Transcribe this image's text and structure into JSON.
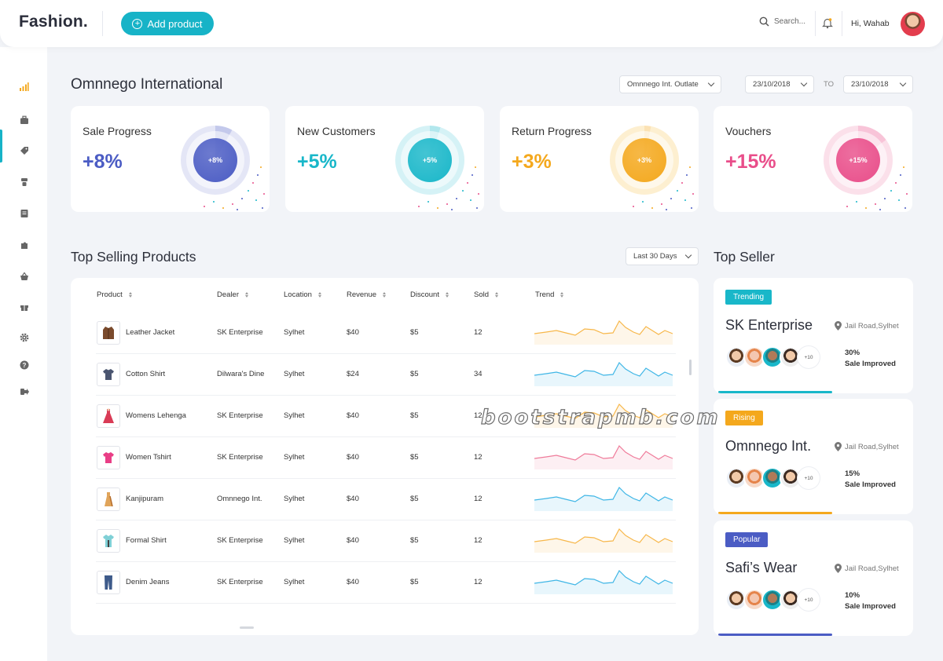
{
  "app": {
    "logo": "Fashion.",
    "add_product_label": "Add product"
  },
  "header": {
    "search_placeholder": "Search...",
    "greeting": "Hi, Wahab"
  },
  "sidebar": {
    "items": [
      {
        "icon": "bar-chart-icon"
      },
      {
        "icon": "briefcase-icon"
      },
      {
        "icon": "tag-icon"
      },
      {
        "icon": "flask-icon"
      },
      {
        "icon": "document-icon"
      },
      {
        "icon": "puzzle-icon"
      },
      {
        "icon": "basket-icon"
      },
      {
        "icon": "gift-icon"
      },
      {
        "icon": "gear-icon"
      },
      {
        "icon": "help-icon"
      },
      {
        "icon": "logout-icon"
      }
    ]
  },
  "main": {
    "title": "Omnnego International",
    "outlet_select": "Omnnego Int. Outlate",
    "date_from": "23/10/2018",
    "date_to_label": "TO",
    "date_to": "23/10/2018"
  },
  "stats": [
    {
      "label": "Sale Progress",
      "value": "+8%",
      "ring_label": "+8%",
      "color": "#4b5cc4",
      "ring_fill": 0.08
    },
    {
      "label": "New Customers",
      "value": "+5%",
      "ring_label": "+5%",
      "color": "#19b7c9",
      "ring_fill": 0.05
    },
    {
      "label": "Return Progress",
      "value": "+3%",
      "ring_label": "+3%",
      "color": "#f4a81d",
      "ring_fill": 0.03
    },
    {
      "label": "Vouchers",
      "value": "+15%",
      "ring_label": "+15%",
      "color": "#e94e8a",
      "ring_fill": 0.15
    }
  ],
  "top_selling": {
    "title": "Top Selling Products",
    "period_select": "Last 30 Days",
    "columns": [
      "Product",
      "Dealer",
      "Location",
      "Revenue",
      "Discount",
      "Sold",
      "Trend"
    ],
    "rows": [
      {
        "product": "Leather Jacket",
        "dealer": "SK Enterprise",
        "location": "Sylhet",
        "revenue": "$40",
        "discount": "$5",
        "sold": "12",
        "trend_color": "#f7b74a",
        "icon": "jacket-icon"
      },
      {
        "product": "Cotton Shirt",
        "dealer": "Dilwara's Dine",
        "location": "Sylhet",
        "revenue": "$24",
        "discount": "$5",
        "sold": "34",
        "trend_color": "#3fb6e6",
        "icon": "shirt-icon"
      },
      {
        "product": "Womens Lehenga",
        "dealer": "SK Enterprise",
        "location": "Sylhet",
        "revenue": "$40",
        "discount": "$5",
        "sold": "12",
        "trend_color": "#f7b74a",
        "icon": "dress-icon"
      },
      {
        "product": "Women Tshirt",
        "dealer": "SK Enterprise",
        "location": "Sylhet",
        "revenue": "$40",
        "discount": "$5",
        "sold": "12",
        "trend_color": "#ef7b9a",
        "icon": "tshirt-icon"
      },
      {
        "product": "Kanjipuram",
        "dealer": "Omnnego Int.",
        "location": "Sylhet",
        "revenue": "$40",
        "discount": "$5",
        "sold": "12",
        "trend_color": "#3fb6e6",
        "icon": "saree-icon"
      },
      {
        "product": "Formal  Shirt",
        "dealer": "SK Enterprise",
        "location": "Sylhet",
        "revenue": "$40",
        "discount": "$5",
        "sold": "12",
        "trend_color": "#f7b74a",
        "icon": "formal-shirt-icon"
      },
      {
        "product": "Denim Jeans",
        "dealer": "SK Enterprise",
        "location": "Sylhet",
        "revenue": "$40",
        "discount": "$5",
        "sold": "12",
        "trend_color": "#3fb6e6",
        "icon": "jeans-icon"
      }
    ]
  },
  "top_seller": {
    "title": "Top Seller",
    "cards": [
      {
        "badge": "Trending",
        "badge_color": "#19b7c9",
        "name": "SK Enterprise",
        "location": "Jail Road,Sylhet",
        "more": "+10",
        "percent": "30%",
        "improve_label": "Sale Improved",
        "bar_color": "#19b7c9",
        "progress": 0.6
      },
      {
        "badge": "Rising",
        "badge_color": "#f4a81d",
        "name": "Omnnego Int.",
        "location": "Jail Road,Sylhet",
        "more": "+10",
        "percent": "15%",
        "improve_label": "Sale Improved",
        "bar_color": "#f4a81d",
        "progress": 0.6
      },
      {
        "badge": "Popular",
        "badge_color": "#4b5cc4",
        "name": "Safi’s Wear",
        "location": "Jail Road,Sylhet",
        "more": "+10",
        "percent": "10%",
        "improve_label": "Sale Improved",
        "bar_color": "#4b5cc4",
        "progress": 0.6
      }
    ]
  },
  "watermark": "bootstrapmb.com"
}
